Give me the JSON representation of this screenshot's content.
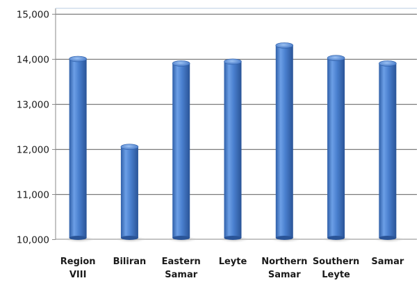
{
  "chart_data": {
    "type": "bar",
    "categories": [
      [
        "Region",
        "VIII"
      ],
      [
        "Biliran"
      ],
      [
        "Eastern",
        "Samar"
      ],
      [
        "Leyte"
      ],
      [
        "Northern",
        "Samar"
      ],
      [
        "Southern",
        "Leyte"
      ],
      [
        "Samar"
      ]
    ],
    "values": [
      14000,
      12050,
      13900,
      13940,
      14300,
      14020,
      13900
    ],
    "title": "",
    "xlabel": "",
    "ylabel": "",
    "ylim": [
      10000,
      15000
    ],
    "yticks": [
      10000,
      11000,
      12000,
      13000,
      14000,
      15000
    ],
    "ytick_labels": [
      "10,000",
      "11,000",
      "12,000",
      "13,000",
      "14,000",
      "15,000"
    ],
    "bar_color": "#4a80cf",
    "grid": true,
    "legend": "none"
  }
}
